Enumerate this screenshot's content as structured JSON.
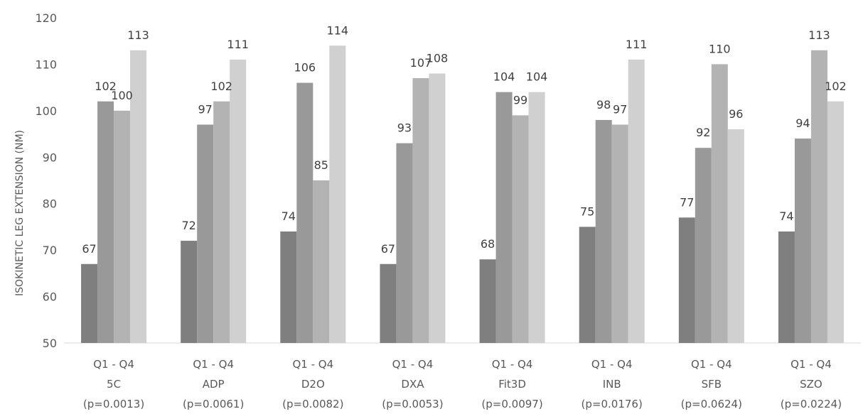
{
  "chart_data": {
    "type": "bar",
    "ylabel": "ISOKINETIC LEG EXTENSION (NM)",
    "ylim": [
      50,
      120
    ],
    "yticks": [
      50,
      60,
      70,
      80,
      90,
      100,
      110,
      120
    ],
    "grid": false,
    "legend": "none",
    "categories": [
      {
        "line1": "Q1 - Q4",
        "line2": "5C",
        "line3": "(p=0.0013)"
      },
      {
        "line1": "Q1 - Q4",
        "line2": "ADP",
        "line3": "(p=0.0061)"
      },
      {
        "line1": "Q1 - Q4",
        "line2": "D2O",
        "line3": "(p=0.0082)"
      },
      {
        "line1": "Q1 - Q4",
        "line2": "DXA",
        "line3": "(p=0.0053)"
      },
      {
        "line1": "Q1 - Q4",
        "line2": "Fit3D",
        "line3": "(p=0.0097)"
      },
      {
        "line1": "Q1 - Q4",
        "line2": "INB",
        "line3": "(p=0.0176)"
      },
      {
        "line1": "Q1 - Q4",
        "line2": "SFB",
        "line3": "(p=0.0624)"
      },
      {
        "line1": "Q1 - Q4",
        "line2": "SZO",
        "line3": "(p=0.0224)"
      }
    ],
    "series": [
      {
        "color": "#7f7f7f",
        "values": [
          67,
          72,
          74,
          67,
          68,
          75,
          77,
          74
        ],
        "labels": [
          "67",
          "72",
          "74",
          "67",
          "68",
          "75",
          "77",
          "74"
        ]
      },
      {
        "color": "#999999",
        "values": [
          102,
          97,
          106,
          93,
          104,
          98,
          92,
          94
        ],
        "labels": [
          "102",
          "97",
          "106",
          "93",
          "104",
          "98",
          "92",
          "94"
        ]
      },
      {
        "color": "#b3b3b3",
        "values": [
          100,
          102,
          85,
          107,
          99,
          97,
          110,
          113
        ],
        "labels": [
          "100",
          "102",
          "85",
          "107",
          "99",
          "97",
          "110",
          "113"
        ]
      },
      {
        "color": "#d0d0d0",
        "values": [
          113,
          111,
          114,
          108,
          104,
          111,
          96,
          102
        ],
        "labels": [
          "113",
          "111",
          "114",
          "108",
          "104",
          "111",
          "96",
          "102"
        ]
      }
    ]
  }
}
